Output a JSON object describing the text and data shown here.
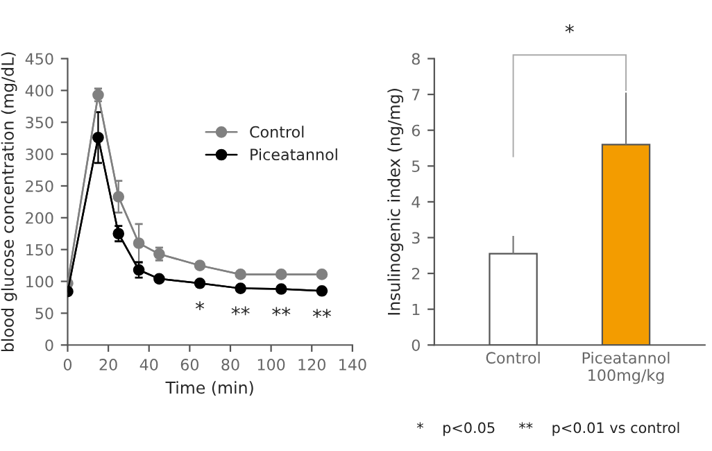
{
  "chart_data": [
    {
      "type": "line",
      "xlabel": "Time (min)",
      "ylabel": "blood glucose concentration (mg/dL)",
      "x": [
        0,
        15,
        25,
        35,
        45,
        65,
        85,
        105,
        125
      ],
      "series": [
        {
          "name": "Control",
          "color": "#808080",
          "values": [
            97,
            393,
            233,
            160,
            143,
            125,
            111,
            111,
            111
          ],
          "errors": [
            5,
            10,
            25,
            30,
            10,
            5,
            4,
            4,
            4
          ]
        },
        {
          "name": "Piceatannol",
          "color": "#000000",
          "values": [
            84,
            326,
            175,
            118,
            104,
            97,
            89,
            88,
            85
          ],
          "errors": [
            5,
            40,
            12,
            12,
            5,
            4,
            3,
            3,
            3
          ]
        }
      ],
      "xlim": [
        0,
        140
      ],
      "xticks": [
        0,
        20,
        40,
        60,
        80,
        100,
        120,
        140
      ],
      "ylim": [
        0,
        450
      ],
      "yticks": [
        0,
        50,
        100,
        150,
        200,
        250,
        300,
        350,
        400,
        450
      ],
      "marker": "circle",
      "legend": "right",
      "grid": false,
      "annotations": [
        "*",
        "**",
        "**",
        "**"
      ]
    },
    {
      "type": "bar",
      "ylabel": "Insulinogenic index (ng/mg)",
      "categories": [
        "Control",
        "Piceatannol\n100mg/kg"
      ],
      "values": [
        2.55,
        5.6
      ],
      "colors": [
        "#ffffff",
        "#f39c00"
      ],
      "errors": [
        [
          2.55,
          3.05
        ],
        [
          5.6,
          7.05
        ]
      ],
      "ylim": [
        0,
        8
      ],
      "yticks": [
        0,
        1,
        2,
        3,
        4,
        5,
        6,
        7,
        8
      ],
      "grid": false,
      "legend": false,
      "annotations": [
        "*",
        "*    p<0.05     **    p<0.01 vs control"
      ]
    }
  ]
}
